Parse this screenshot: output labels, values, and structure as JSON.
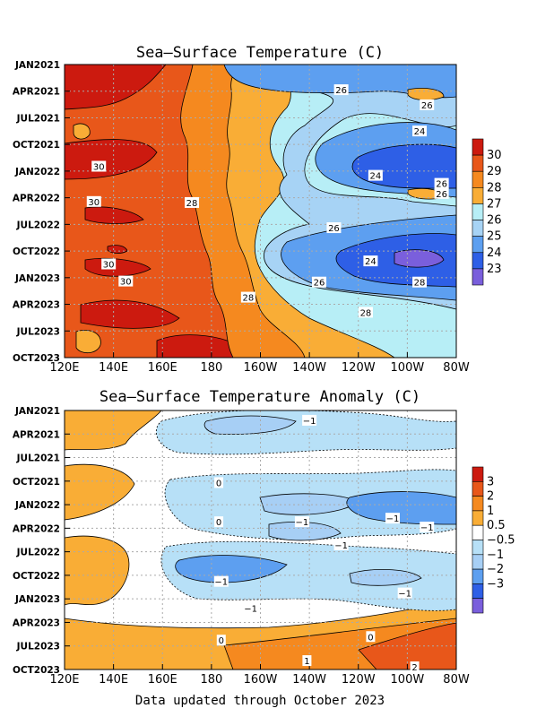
{
  "footer": "Data updated through October 2023",
  "chart_data": [
    {
      "type": "heatmap",
      "title": "Sea–Surface Temperature (C)",
      "x_ticks": [
        "120E",
        "140E",
        "160E",
        "180",
        "160W",
        "140W",
        "120W",
        "100W",
        "80W"
      ],
      "y_ticks": [
        "JAN2021",
        "APR2021",
        "JUL2021",
        "OCT2021",
        "JAN2022",
        "APR2022",
        "JUL2022",
        "OCT2022",
        "JAN2023",
        "APR2023",
        "JUL2023",
        "OCT2023"
      ],
      "colorbar": {
        "labels": [
          "30",
          "29",
          "28",
          "27",
          "26",
          "25",
          "24",
          "23"
        ],
        "colors": [
          "#cc1a0f",
          "#e8571a",
          "#f5891f",
          "#f9ad36",
          "#b7eef6",
          "#a7d3f5",
          "#5d9ff0",
          "#2e5fe6",
          "#7a5fdc"
        ]
      },
      "contour_labels": [
        {
          "text": "26",
          "lon": -127,
          "t": 2021.17
        },
        {
          "text": "26",
          "lon": -92,
          "t": 2021.32
        },
        {
          "text": "24",
          "lon": -95,
          "t": 2021.58
        },
        {
          "text": "24",
          "lon": -113,
          "t": 2022.02
        },
        {
          "text": "26",
          "lon": -86,
          "t": 2022.1
        },
        {
          "text": "26",
          "lon": -86,
          "t": 2022.2
        },
        {
          "text": "30",
          "lon": 134,
          "t": 2021.93
        },
        {
          "text": "30",
          "lon": 132,
          "t": 2022.28
        },
        {
          "text": "28",
          "lon": 172,
          "t": 2022.29
        },
        {
          "text": "26",
          "lon": -130,
          "t": 2022.54
        },
        {
          "text": "24",
          "lon": -115,
          "t": 2022.87
        },
        {
          "text": "30",
          "lon": 138,
          "t": 2022.9
        },
        {
          "text": "30",
          "lon": 145,
          "t": 2023.07
        },
        {
          "text": "26",
          "lon": -136,
          "t": 2023.08
        },
        {
          "text": "28",
          "lon": -95,
          "t": 2023.08
        },
        {
          "text": "28",
          "lon": -165,
          "t": 2023.23
        },
        {
          "text": "28",
          "lon": -117,
          "t": 2023.38
        }
      ]
    },
    {
      "type": "heatmap",
      "title": "Sea–Surface Temperature Anomaly (C)",
      "x_ticks": [
        "120E",
        "140E",
        "160E",
        "180",
        "160W",
        "140W",
        "120W",
        "100W",
        "80W"
      ],
      "y_ticks": [
        "JAN2021",
        "APR2021",
        "JUL2021",
        "OCT2021",
        "JAN2022",
        "APR2022",
        "JUL2022",
        "OCT2022",
        "JAN2023",
        "APR2023",
        "JUL2023",
        "OCT2023"
      ],
      "colorbar": {
        "labels": [
          "3",
          "2",
          "1",
          "0.5",
          "−0.5",
          "−1",
          "−2",
          "−3"
        ],
        "colors": [
          "#cc1a0f",
          "#e8571a",
          "#f5891f",
          "#f9ad36",
          "#ffffff",
          "#b7e0f7",
          "#a7cff5",
          "#5d9ff0",
          "#2e5fe6",
          "#7a5fdc"
        ]
      },
      "contour_labels": [
        {
          "text": "−1",
          "lon": -140,
          "t": 2021.03
        },
        {
          "text": "0",
          "lon": -177,
          "t": 2021.73
        },
        {
          "text": "−1",
          "lon": -106,
          "t": 2022.13
        },
        {
          "text": "−1",
          "lon": -143,
          "t": 2022.17
        },
        {
          "text": "0",
          "lon": -177,
          "t": 2022.17
        },
        {
          "text": "−1",
          "lon": -92,
          "t": 2022.23
        },
        {
          "text": "−1",
          "lon": -127,
          "t": 2022.43
        },
        {
          "text": "−1",
          "lon": -176,
          "t": 2022.84
        },
        {
          "text": "−1",
          "lon": -101,
          "t": 2022.97
        },
        {
          "text": "−1",
          "lon": -164,
          "t": 2023.14
        },
        {
          "text": "0",
          "lon": -176,
          "t": 2023.5
        },
        {
          "text": "0",
          "lon": -115,
          "t": 2023.46
        },
        {
          "text": "1",
          "lon": -141,
          "t": 2023.73
        },
        {
          "text": "2",
          "lon": -97,
          "t": 2023.8
        }
      ]
    }
  ]
}
